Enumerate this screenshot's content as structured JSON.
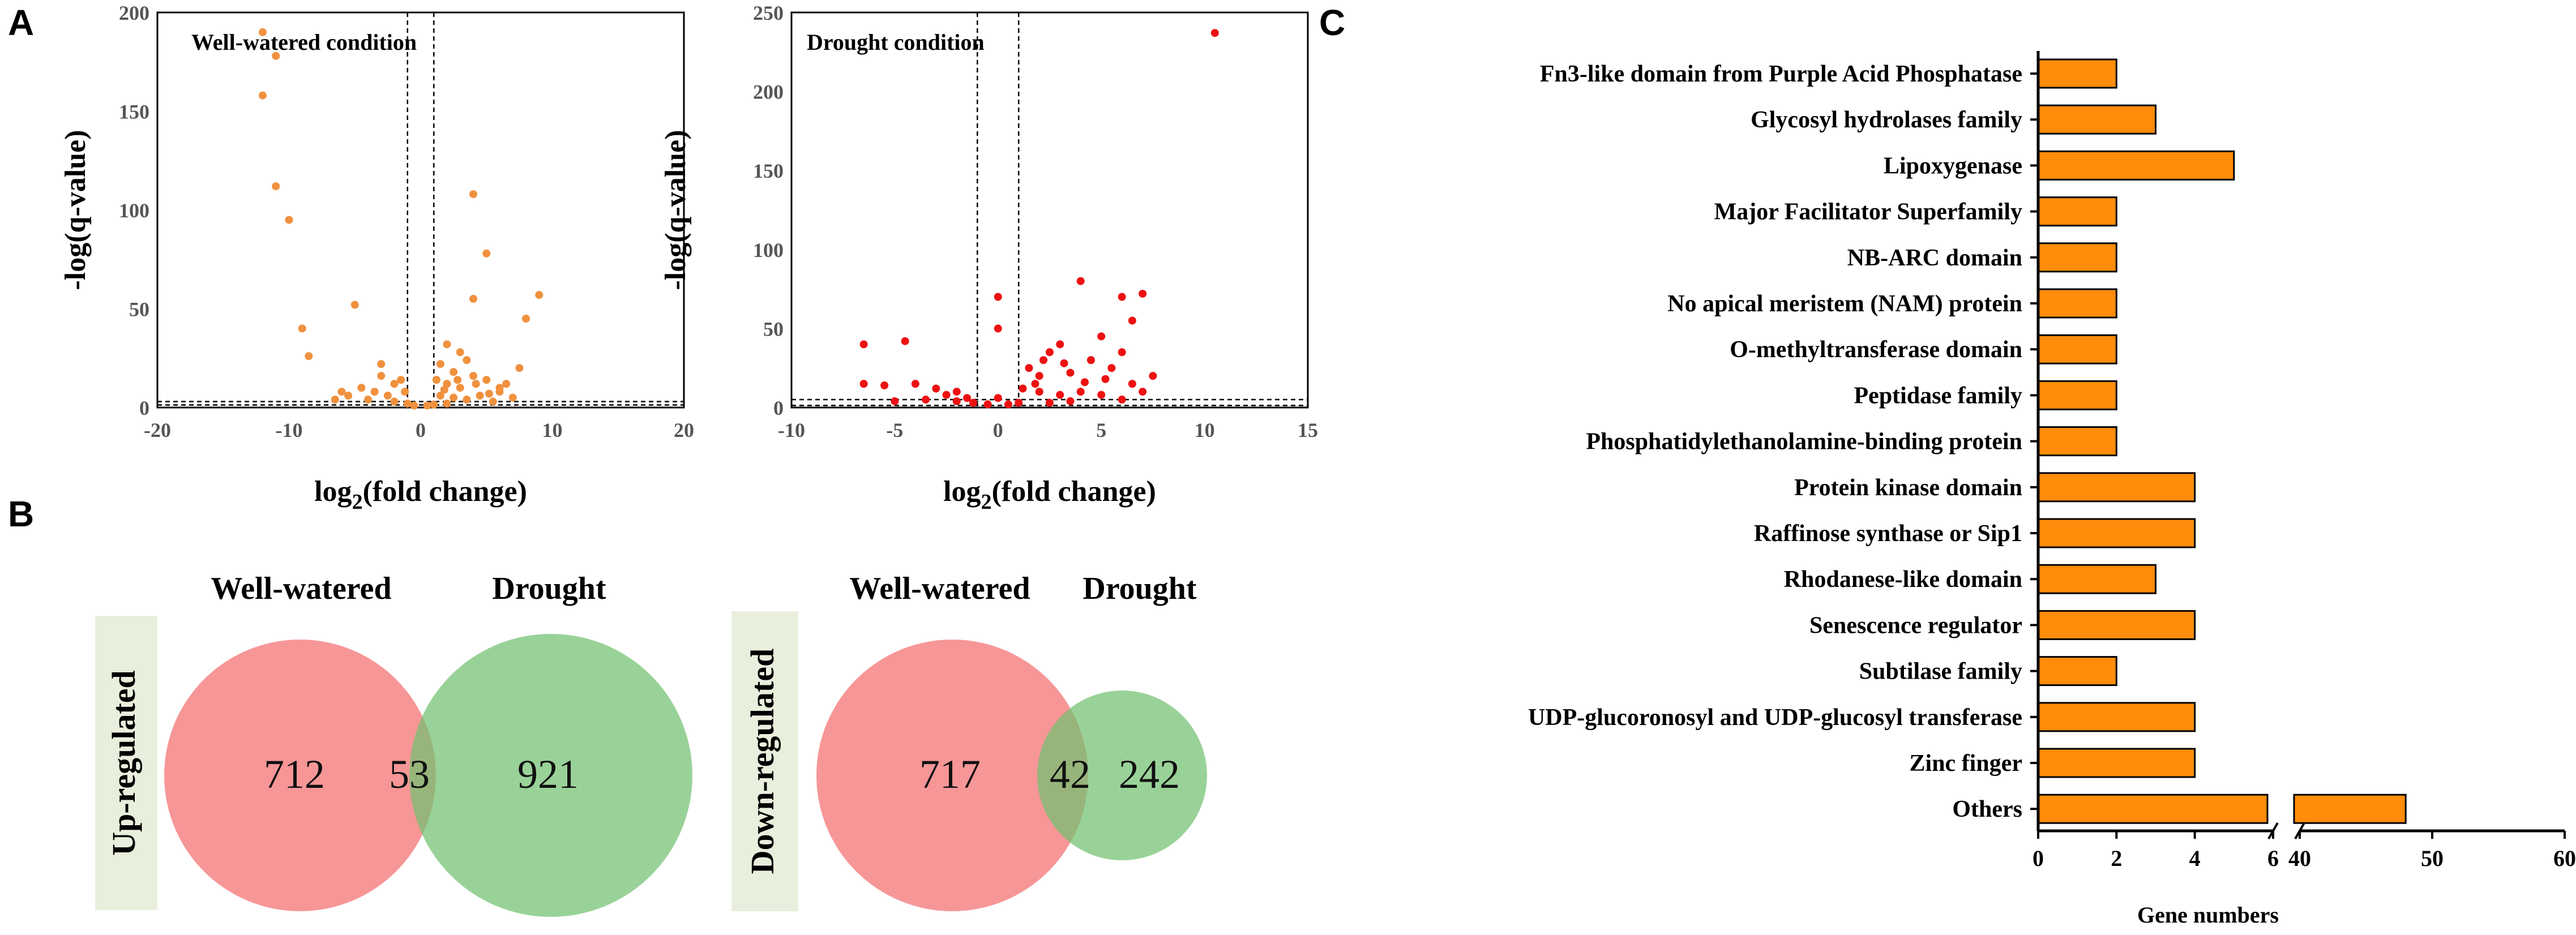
{
  "panels": {
    "a": "A",
    "b": "B",
    "c": "C"
  },
  "colors": {
    "volcano_ww": "#f0913e",
    "volcano_dr": "#ee1111",
    "venn_red": "#f5787a",
    "venn_green": "#72c170",
    "bar_fill": "#ff8c0a",
    "label_box": "#e9efdd"
  },
  "chart_data": [
    {
      "id": "volcano_well_watered",
      "type": "scatter",
      "title": "Well-watered condition",
      "xlabel_pre": "log",
      "xlabel_sub": "2",
      "xlabel_post": "(fold change)",
      "ylabel": "-log(q-value)",
      "xlim": [
        -20,
        20
      ],
      "ylim": [
        0,
        200
      ],
      "xticks": [
        -20,
        -10,
        0,
        10,
        20
      ],
      "yticks": [
        0,
        50,
        100,
        150,
        200
      ],
      "vlines": [
        -1,
        1
      ],
      "hlines": [
        1.3,
        3
      ],
      "color": "#f0913e",
      "points": [
        [
          -12,
          190
        ],
        [
          -11,
          178
        ],
        [
          -12,
          158
        ],
        [
          -11,
          112
        ],
        [
          -10,
          95
        ],
        [
          -9,
          40
        ],
        [
          -8.5,
          26
        ],
        [
          -5,
          52
        ],
        [
          4,
          108
        ],
        [
          5,
          78
        ],
        [
          4,
          55
        ],
        [
          9,
          57
        ],
        [
          8,
          45
        ],
        [
          7.5,
          20
        ],
        [
          6.5,
          12
        ],
        [
          2,
          32
        ],
        [
          3,
          28
        ],
        [
          1.5,
          22
        ],
        [
          2.5,
          18
        ],
        [
          3.5,
          24
        ],
        [
          4,
          16
        ],
        [
          5,
          14
        ],
        [
          6,
          10
        ],
        [
          1.2,
          14
        ],
        [
          2,
          12
        ],
        [
          3,
          10
        ],
        [
          -1.5,
          14
        ],
        [
          -2,
          12
        ],
        [
          -3,
          16
        ],
        [
          -3.5,
          8
        ],
        [
          -4.5,
          10
        ],
        [
          -5.5,
          6
        ],
        [
          -2.5,
          6
        ],
        [
          -1.2,
          8
        ],
        [
          1.5,
          6
        ],
        [
          2.5,
          5
        ],
        [
          4.5,
          6
        ],
        [
          -6.5,
          4
        ],
        [
          7,
          5
        ],
        [
          5.5,
          3
        ],
        [
          -4,
          4
        ],
        [
          3.5,
          4
        ],
        [
          -2,
          3
        ],
        [
          2,
          2
        ],
        [
          1,
          1.5
        ],
        [
          -1,
          2
        ],
        [
          0.5,
          1
        ],
        [
          -0.5,
          1
        ],
        [
          6,
          8
        ],
        [
          -3,
          22
        ],
        [
          2.8,
          14
        ],
        [
          -6,
          8
        ],
        [
          1.8,
          9
        ],
        [
          4.2,
          12
        ],
        [
          5.2,
          7
        ]
      ]
    },
    {
      "id": "volcano_drought",
      "type": "scatter",
      "title": "Drought condition",
      "xlabel_pre": "log",
      "xlabel_sub": "2",
      "xlabel_post": "(fold change)",
      "ylabel": "-log(q-value)",
      "xlim": [
        -10,
        15
      ],
      "ylim": [
        0,
        250
      ],
      "xticks": [
        -10,
        -5,
        0,
        5,
        10,
        15
      ],
      "yticks": [
        0,
        50,
        100,
        150,
        200,
        250
      ],
      "vlines": [
        -1,
        1
      ],
      "hlines": [
        1.3,
        5
      ],
      "color": "#ee1111",
      "points": [
        [
          10.5,
          237
        ],
        [
          0,
          70
        ],
        [
          0,
          50
        ],
        [
          4,
          80
        ],
        [
          6,
          70
        ],
        [
          7,
          72
        ],
        [
          6.5,
          55
        ],
        [
          5,
          45
        ],
        [
          -4.5,
          42
        ],
        [
          -6.5,
          40
        ],
        [
          3,
          40
        ],
        [
          2.5,
          35
        ],
        [
          4.5,
          30
        ],
        [
          1.5,
          25
        ],
        [
          2,
          20
        ],
        [
          3.5,
          22
        ],
        [
          5.5,
          25
        ],
        [
          7.5,
          20
        ],
        [
          6.5,
          15
        ],
        [
          -6.5,
          15
        ],
        [
          -5.5,
          14
        ],
        [
          -4,
          15
        ],
        [
          -3,
          12
        ],
        [
          -2.5,
          8
        ],
        [
          -2,
          10
        ],
        [
          -1.5,
          6
        ],
        [
          1.2,
          12
        ],
        [
          2,
          10
        ],
        [
          3,
          8
        ],
        [
          4,
          10
        ],
        [
          5,
          8
        ],
        [
          -3.5,
          5
        ],
        [
          -5,
          4
        ],
        [
          -1.2,
          3
        ],
        [
          1,
          3
        ],
        [
          2.5,
          3
        ],
        [
          3.5,
          4
        ],
        [
          6,
          5
        ],
        [
          0,
          6
        ],
        [
          0.5,
          2
        ],
        [
          -0.5,
          2
        ],
        [
          1.8,
          15
        ],
        [
          4.2,
          16
        ],
        [
          3.2,
          28
        ],
        [
          2.2,
          30
        ],
        [
          5.2,
          18
        ],
        [
          -2,
          4
        ],
        [
          7,
          10
        ],
        [
          6,
          35
        ]
      ]
    },
    {
      "id": "domain_bars",
      "type": "bar",
      "orientation": "horizontal",
      "xlabel": "Gene numbers",
      "axis_break_between": [
        6,
        40
      ],
      "xticks_left": [
        0,
        2,
        4,
        6
      ],
      "xticks_right": [
        40,
        50,
        60
      ],
      "categories": [
        "Fn3-like domain from Purple Acid Phosphatase",
        "Glycosyl hydrolases family",
        "Lipoxygenase",
        "Major Facilitator Superfamily",
        "NB-ARC domain",
        "No apical meristem (NAM) protein",
        "O-methyltransferase domain",
        "Peptidase family",
        "Phosphatidylethanolamine-binding protein",
        "Protein kinase domain",
        "Raffinose synthase or Sip1",
        "Rhodanese-like domain",
        "Senescence regulator",
        "Subtilase family",
        "UDP-glucoronosyl and UDP-glucosyl transferase",
        "Zinc finger",
        "Others"
      ],
      "values": [
        2,
        3,
        5,
        2,
        2,
        2,
        2,
        2,
        2,
        4,
        4,
        3,
        4,
        2,
        4,
        4,
        48
      ],
      "color": "#ff8c0a"
    }
  ],
  "venn": {
    "up": {
      "side_label": "Up-regulated",
      "left_title": "Well-watered",
      "right_title": "Drought",
      "left_only": "712",
      "overlap": "53",
      "right_only": "921"
    },
    "down": {
      "side_label": "Down-regulated",
      "left_title": "Well-watered",
      "right_title": "Drought",
      "left_only": "717",
      "overlap": "42",
      "right_only": "242"
    }
  }
}
